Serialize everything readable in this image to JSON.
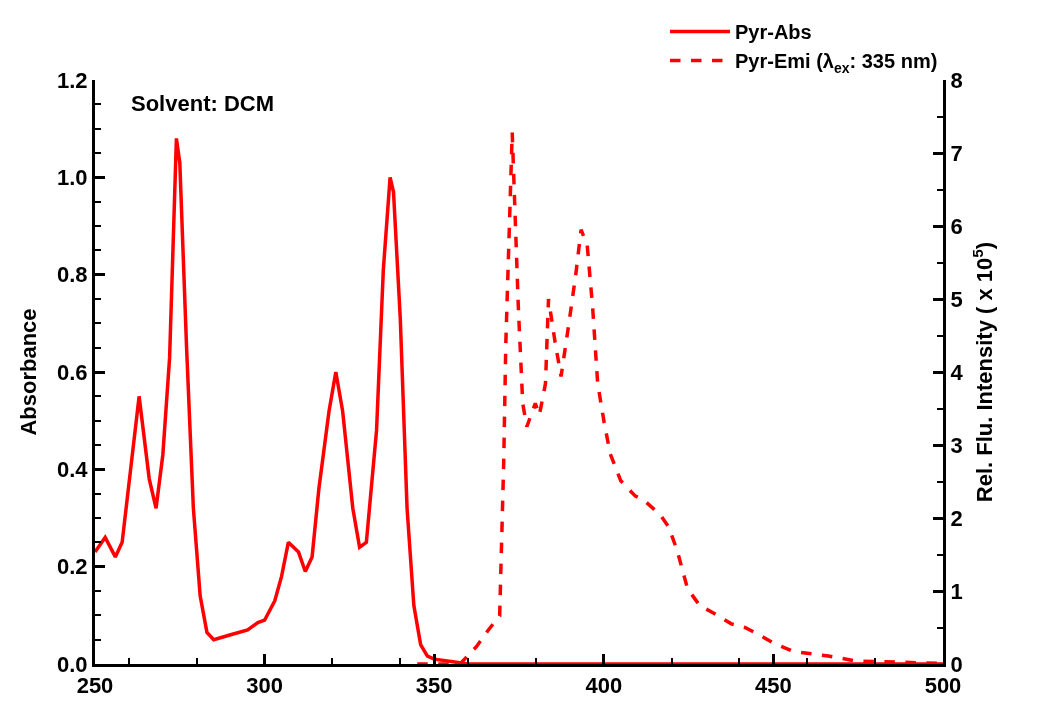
{
  "chart_data": {
    "type": "line",
    "xlim": [
      250,
      500
    ],
    "xticks": [
      250,
      300,
      350,
      400,
      450,
      500
    ],
    "ylabel": "Absorbance",
    "ylim": [
      0,
      1.2
    ],
    "yticks": [
      {
        "value": 0,
        "label": "0.0"
      },
      0.2,
      0.4,
      0.6,
      0.8,
      {
        "value": 1,
        "label": "1.0"
      },
      1.2
    ],
    "y2label": "Rel. Flu. Intensity ( x 10$^{5}$)",
    "y2lim": [
      0,
      8
    ],
    "y2ticks": [
      0,
      1,
      2,
      3,
      4,
      5,
      6,
      7,
      8
    ],
    "annotations": [
      "Solvent: DCM"
    ],
    "legend": "top right",
    "series": [
      {
        "name": "Pyr-Abs",
        "color": "#ff0000",
        "line_style": "solid",
        "x": [
          250,
          253,
          256,
          258,
          260.5,
          263,
          266,
          268,
          270,
          272,
          274,
          275,
          277,
          279,
          281,
          283,
          285,
          290,
          295,
          298,
          300,
          303,
          305,
          307,
          310,
          312,
          314,
          316,
          319,
          321,
          323,
          326,
          328,
          330,
          333,
          335,
          337,
          338,
          340,
          342,
          344,
          346,
          348,
          350,
          355,
          360,
          400,
          450,
          500
        ],
        "values": [
          0.23,
          0.26,
          0.22,
          0.25,
          0.4,
          0.55,
          0.38,
          0.32,
          0.43,
          0.63,
          1.08,
          1.03,
          0.65,
          0.32,
          0.14,
          0.065,
          0.05,
          0.06,
          0.07,
          0.085,
          0.09,
          0.13,
          0.18,
          0.25,
          0.23,
          0.19,
          0.22,
          0.36,
          0.52,
          0.6,
          0.52,
          0.32,
          0.24,
          0.25,
          0.48,
          0.81,
          1.0,
          0.97,
          0.71,
          0.32,
          0.12,
          0.04,
          0.016,
          0.01,
          0.005,
          0,
          0,
          0,
          0
        ]
      },
      {
        "name": "Pyr-Emi (λ$_{ex}$: 335 nm)",
        "color": "#ff0000",
        "line_style": "dashed",
        "axis": "y2",
        "x": [
          345,
          357.6,
          362.5,
          366.2,
          369.3,
          370.5,
          371.1,
          373,
          374.8,
          376.1,
          377.3,
          379.8,
          381,
          382.8,
          383.7,
          385.6,
          387.4,
          389.6,
          391.7,
          393.3,
          395.1,
          396.7,
          398.2,
          400.1,
          401.9,
          405,
          409.3,
          411.7,
          416.7,
          419.1,
          421.6,
          424.7,
          428.3,
          432.3,
          437.6,
          441.6,
          445.8,
          449.9,
          456,
          466.2,
          474.5,
          482.8,
          499
        ],
        "values": [
          0,
          0,
          0.24,
          0.48,
          0.66,
          2.78,
          4.37,
          7.28,
          4.89,
          3.57,
          3.25,
          3.57,
          3.41,
          3.84,
          5.0,
          4.42,
          3.94,
          4.63,
          5.32,
          5.95,
          5.74,
          4.89,
          3.84,
          3.31,
          2.88,
          2.51,
          2.3,
          2.25,
          2.04,
          1.88,
          1.56,
          1.03,
          0.8,
          0.7,
          0.55,
          0.5,
          0.4,
          0.29,
          0.17,
          0.11,
          0.04,
          0.03,
          0.01
        ]
      }
    ]
  }
}
